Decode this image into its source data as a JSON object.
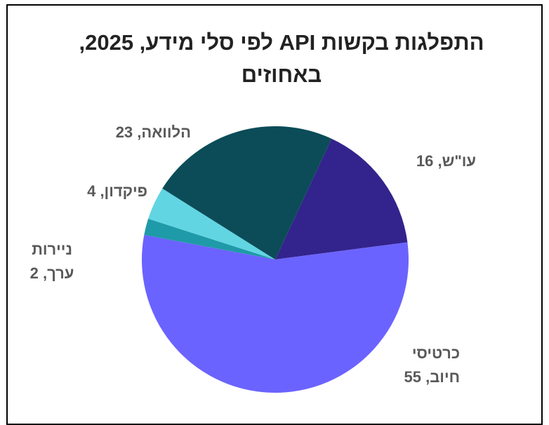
{
  "chart_data": {
    "type": "pie",
    "title": "התפלגות בקשות API לפי סלי מידע, 2025, באחוזים",
    "categories": [
      "עו\"ש",
      "כרטיסי חיוב",
      "ניירות ערך",
      "פיקדון",
      "הלוואה"
    ],
    "values": [
      16,
      55,
      2,
      4,
      23
    ],
    "labels": [
      "עו\"ש, 16",
      "כרטיסי חיוב, 55",
      "ניירות ערך, 2",
      "פיקדון, 4",
      "הלוואה, 23"
    ],
    "colors": [
      "#33238c",
      "#6b63ff",
      "#1f9aa8",
      "#62d5e3",
      "#0b4c58"
    ],
    "start_angle_deg": 25,
    "direction": "clockwise",
    "legend": "none"
  }
}
